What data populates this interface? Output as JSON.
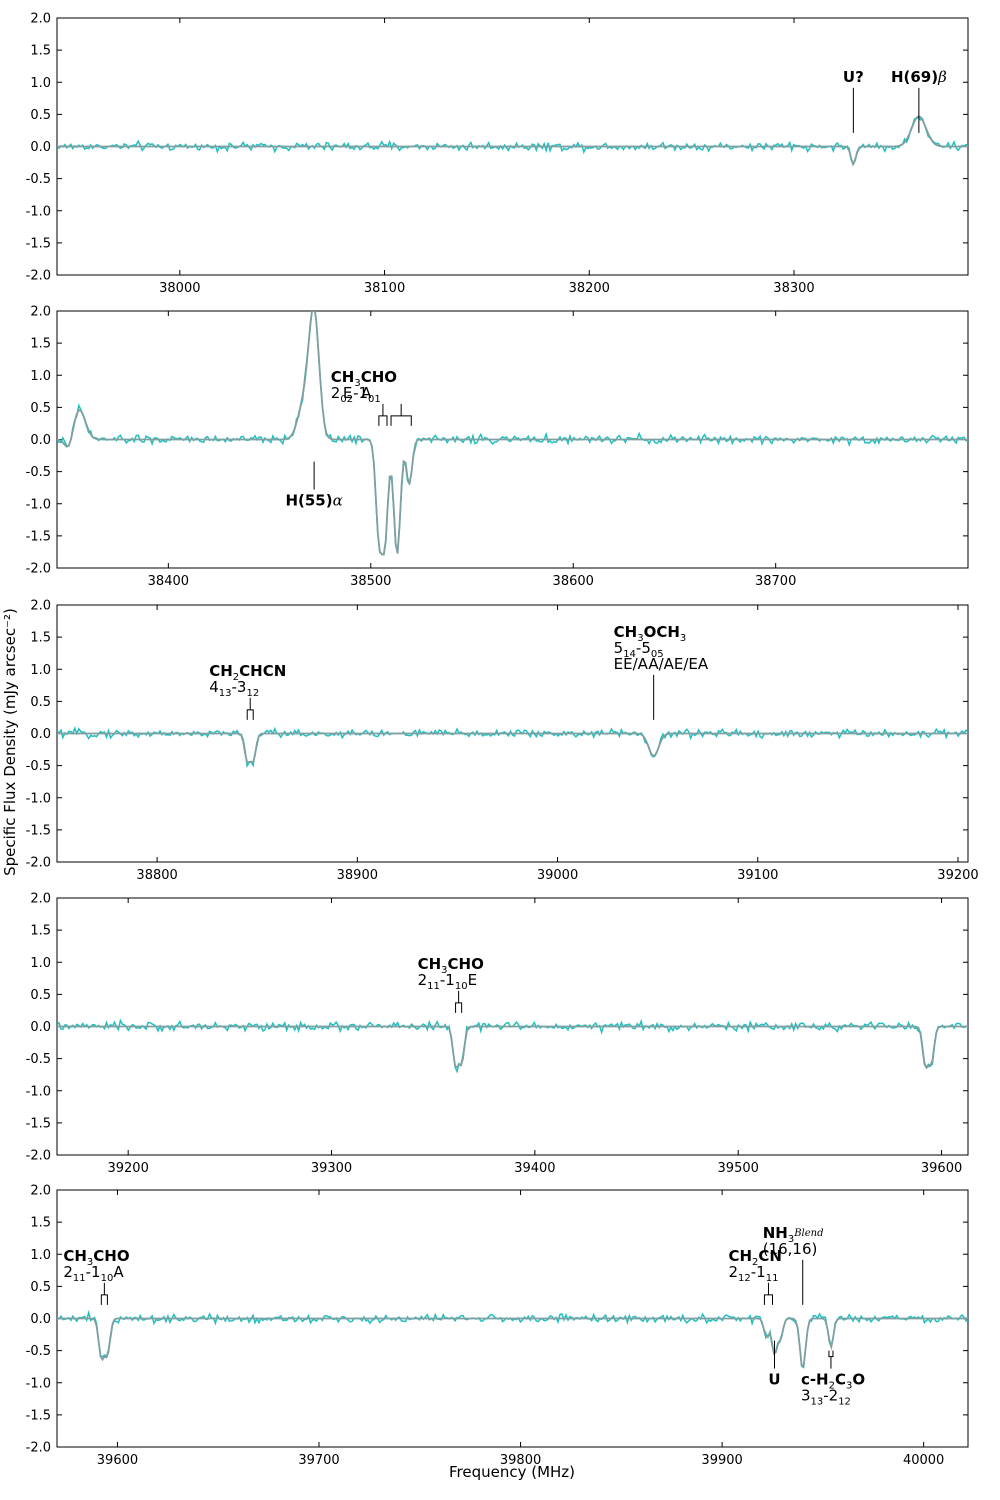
{
  "xlabel": "Frequency (MHz)",
  "ylabel": "Specific Flux Density (mJy arcsec⁻²)",
  "colors": {
    "data": "#20c0c0",
    "model": "#7f9fa0",
    "axes": "#000000"
  },
  "chart_data": [
    {
      "type": "line",
      "xlim": [
        37940,
        38385
      ],
      "ylim": [
        -2.0,
        2.0
      ],
      "xticks": [
        38000,
        38100,
        38200,
        38300
      ],
      "yticks": [
        -2.0,
        -1.5,
        -1.0,
        -0.5,
        0.0,
        0.5,
        1.0,
        1.5,
        2.0
      ],
      "features": [
        {
          "center": 38329,
          "amp": -0.28,
          "width": 1.2
        },
        {
          "center": 38361,
          "amp": 0.47,
          "width": 3.5
        }
      ],
      "labels": [
        {
          "lines": [
            {
              "parts": [
                {
                  "t": "U?",
                  "b": true
                }
              ]
            }
          ],
          "x": 38329,
          "mark": "line",
          "dir": "up"
        },
        {
          "lines": [
            {
              "parts": [
                {
                  "t": "H(69)",
                  "b": true
                },
                {
                  "t": "β",
                  "i": true
                }
              ]
            }
          ],
          "x": 38361,
          "mark": "line",
          "dir": "up"
        }
      ]
    },
    {
      "type": "line",
      "xlim": [
        38345,
        38795
      ],
      "ylim": [
        -2.0,
        2.0
      ],
      "xticks": [
        38400,
        38500,
        38600,
        38700
      ],
      "yticks": [
        -2.0,
        -1.5,
        -1.0,
        -0.5,
        0.0,
        0.5,
        1.0,
        1.5,
        2.0
      ],
      "features": [
        {
          "center": 38356,
          "amp": 0.47,
          "width": 3
        },
        {
          "center": 38351,
          "amp": -0.2,
          "width": 2
        },
        {
          "center": 38472,
          "amp": 1.95,
          "width": 2.5
        },
        {
          "center": 38467,
          "amp": 0.55,
          "width": 3
        },
        {
          "center": 38504,
          "amp": -1.45,
          "width": 1.5
        },
        {
          "center": 38507,
          "amp": -1.5,
          "width": 1.5
        },
        {
          "center": 38513,
          "amp": -1.8,
          "width": 1.6
        },
        {
          "center": 38519,
          "amp": -0.7,
          "width": 1.4
        }
      ],
      "labels": [
        {
          "lines": [
            {
              "parts": [
                {
                  "t": "CH",
                  "b": true
                },
                {
                  "t": "3",
                  "sub": true
                },
                {
                  "t": "CHO",
                  "b": true
                }
              ]
            },
            {
              "parts": [
                {
                  "t": "2"
                },
                {
                  "t": "02",
                  "sub": true
                },
                {
                  "t": "-1"
                },
                {
                  "t": "01",
                  "sub": true
                }
              ]
            }
          ],
          "x": 38500,
          "mark": "none",
          "dir": "up"
        },
        {
          "lines": [
            {
              "parts": [
                {
                  "t": "E"
                }
              ]
            }
          ],
          "x": 38506,
          "mark": "bracket",
          "x1": 38504,
          "x2": 38508,
          "dir": "up"
        },
        {
          "lines": [
            {
              "parts": [
                {
                  "t": "A"
                }
              ]
            }
          ],
          "x": 38515,
          "mark": "bracket2",
          "x1": 38510,
          "x2": 38520,
          "dir": "up"
        },
        {
          "lines": [
            {
              "parts": [
                {
                  "t": "H(55)",
                  "b": true
                },
                {
                  "t": "α",
                  "i": true
                }
              ]
            }
          ],
          "x": 38472,
          "mark": "line",
          "dir": "down"
        }
      ]
    },
    {
      "type": "line",
      "xlim": [
        38750,
        39205
      ],
      "ylim": [
        -2.0,
        2.0
      ],
      "xticks": [
        38800,
        38900,
        39000,
        39100,
        39200
      ],
      "yticks": [
        -2.0,
        -1.5,
        -1.0,
        -0.5,
        0.0,
        0.5,
        1.0,
        1.5,
        2.0
      ],
      "features": [
        {
          "center": 38845,
          "amp": -0.42,
          "width": 1.3
        },
        {
          "center": 38848,
          "amp": -0.42,
          "width": 1.3
        },
        {
          "center": 39048,
          "amp": -0.35,
          "width": 2.5
        }
      ],
      "labels": [
        {
          "lines": [
            {
              "parts": [
                {
                  "t": "CH",
                  "b": true
                },
                {
                  "t": "2",
                  "sub": true
                },
                {
                  "t": "CHCN",
                  "b": true
                }
              ]
            },
            {
              "parts": [
                {
                  "t": "4"
                },
                {
                  "t": "13",
                  "sub": true
                },
                {
                  "t": "-3"
                },
                {
                  "t": "12",
                  "sub": true
                }
              ]
            }
          ],
          "x": 38846,
          "mark": "bracket",
          "x1": 38845,
          "x2": 38848,
          "dir": "up"
        },
        {
          "lines": [
            {
              "parts": [
                {
                  "t": "CH",
                  "b": true
                },
                {
                  "t": "3",
                  "sub": true
                },
                {
                  "t": "OCH",
                  "b": true
                },
                {
                  "t": "3",
                  "sub": true
                }
              ]
            },
            {
              "parts": [
                {
                  "t": "5"
                },
                {
                  "t": "14",
                  "sub": true
                },
                {
                  "t": "-5"
                },
                {
                  "t": "05",
                  "sub": true
                }
              ]
            },
            {
              "parts": [
                {
                  "t": "EE/AA/AE/EA"
                }
              ]
            }
          ],
          "x": 39048,
          "mark": "line",
          "dir": "up"
        }
      ]
    },
    {
      "type": "line",
      "xlim": [
        39165,
        39613
      ],
      "ylim": [
        -2.0,
        2.0
      ],
      "xticks": [
        39200,
        39300,
        39400,
        39500,
        39600
      ],
      "yticks": [
        -2.0,
        -1.5,
        -1.0,
        -0.5,
        0.0,
        0.5,
        1.0,
        1.5,
        2.0
      ],
      "features": [
        {
          "center": 39361,
          "amp": -0.6,
          "width": 1.3
        },
        {
          "center": 39364,
          "amp": -0.55,
          "width": 1.3
        },
        {
          "center": 39592,
          "amp": -0.6,
          "width": 1.3
        },
        {
          "center": 39595,
          "amp": -0.55,
          "width": 1.3
        }
      ],
      "labels": [
        {
          "lines": [
            {
              "parts": [
                {
                  "t": "CH",
                  "b": true
                },
                {
                  "t": "3",
                  "sub": true
                },
                {
                  "t": "CHO",
                  "b": true
                }
              ]
            },
            {
              "parts": [
                {
                  "t": "2"
                },
                {
                  "t": "11",
                  "sub": true
                },
                {
                  "t": "-1"
                },
                {
                  "t": "10",
                  "sub": true
                },
                {
                  "t": "E"
                }
              ]
            }
          ],
          "x": 39362,
          "mark": "bracket",
          "x1": 39361,
          "x2": 39364,
          "dir": "up"
        }
      ]
    },
    {
      "type": "line",
      "xlim": [
        39570,
        40022
      ],
      "ylim": [
        -2.0,
        2.0
      ],
      "xticks": [
        39600,
        39700,
        39800,
        39900,
        40000
      ],
      "yticks": [
        -2.0,
        -1.5,
        -1.0,
        -0.5,
        0.0,
        0.5,
        1.0,
        1.5,
        2.0
      ],
      "features": [
        {
          "center": 39592,
          "amp": -0.6,
          "width": 1.3
        },
        {
          "center": 39595,
          "amp": -0.55,
          "width": 1.3
        },
        {
          "center": 39922,
          "amp": -0.3,
          "width": 1.2
        },
        {
          "center": 39926,
          "amp": -0.55,
          "width": 1.3
        },
        {
          "center": 39929,
          "amp": -0.3,
          "width": 1.2
        },
        {
          "center": 39940,
          "amp": -0.78,
          "width": 1.4
        },
        {
          "center": 39954,
          "amp": -0.45,
          "width": 1.2
        }
      ],
      "labels": [
        {
          "lines": [
            {
              "parts": [
                {
                  "t": "CH",
                  "b": true
                },
                {
                  "t": "3",
                  "sub": true
                },
                {
                  "t": "CHO",
                  "b": true
                }
              ]
            },
            {
              "parts": [
                {
                  "t": "2"
                },
                {
                  "t": "11",
                  "sub": true
                },
                {
                  "t": "-1"
                },
                {
                  "t": "10",
                  "sub": true
                },
                {
                  "t": "A"
                }
              ]
            }
          ],
          "x": 39593,
          "mark": "bracket",
          "x1": 39592,
          "x2": 39595,
          "dir": "up"
        },
        {
          "lines": [
            {
              "parts": [
                {
                  "t": "CH",
                  "b": true
                },
                {
                  "t": "2",
                  "sub": true
                },
                {
                  "t": "CN",
                  "b": true
                }
              ]
            },
            {
              "parts": [
                {
                  "t": "2"
                },
                {
                  "t": "12",
                  "sub": true
                },
                {
                  "t": "-1"
                },
                {
                  "t": "11",
                  "sub": true
                }
              ]
            }
          ],
          "x": 39923,
          "mark": "bracket",
          "x1": 39921,
          "x2": 39925,
          "dir": "up"
        },
        {
          "lines": [
            {
              "parts": [
                {
                  "t": "NH",
                  "b": true
                },
                {
                  "t": "3",
                  "sub": true
                },
                {
                  "t": "Blend",
                  "sup": true,
                  "i": true
                }
              ]
            },
            {
              "parts": [
                {
                  "t": "(16,16)"
                }
              ]
            }
          ],
          "x": 39940,
          "mark": "line",
          "dir": "up"
        },
        {
          "lines": [
            {
              "parts": [
                {
                  "t": "U",
                  "b": true
                }
              ]
            }
          ],
          "x": 39926,
          "mark": "line",
          "dir": "down"
        },
        {
          "lines": [
            {
              "parts": [
                {
                  "t": "c-H",
                  "b": true
                },
                {
                  "t": "2",
                  "sub": true
                },
                {
                  "t": "C",
                  "b": true
                },
                {
                  "t": "3",
                  "sub": true
                },
                {
                  "t": "O",
                  "b": true
                }
              ]
            },
            {
              "parts": [
                {
                  "t": "3"
                },
                {
                  "t": "13",
                  "sub": true
                },
                {
                  "t": "-2"
                },
                {
                  "t": "12",
                  "sub": true
                }
              ]
            }
          ],
          "x": 39954,
          "mark": "bracketdown",
          "x1": 39953,
          "x2": 39955,
          "dir": "down"
        }
      ]
    }
  ]
}
